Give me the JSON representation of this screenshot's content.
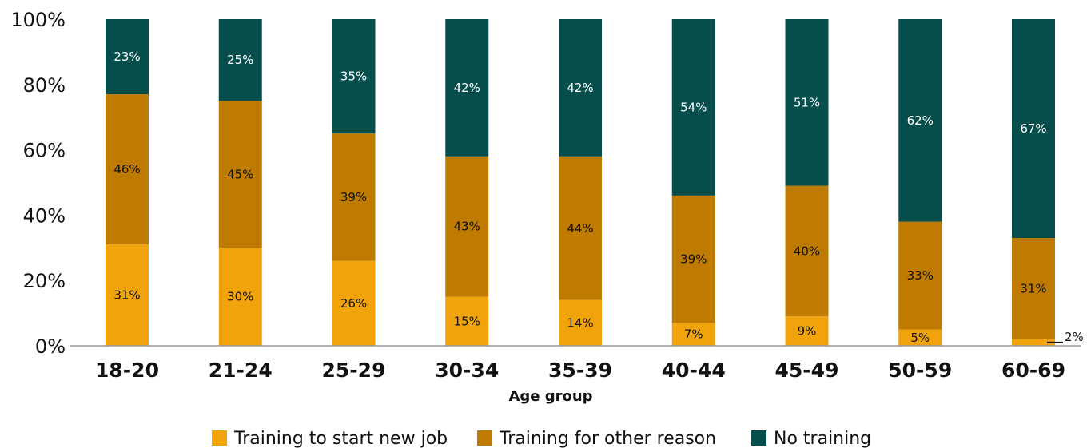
{
  "chart_data": {
    "type": "bar",
    "stacked": true,
    "xlabel": "Age group",
    "ylabel": "",
    "ylim": [
      0,
      100
    ],
    "yticks": [
      "0%",
      "20%",
      "40%",
      "60%",
      "80%",
      "100%"
    ],
    "categories": [
      "18-20",
      "21-24",
      "25-29",
      "30-34",
      "35-39",
      "40-44",
      "45-49",
      "50-59",
      "60-69"
    ],
    "series": [
      {
        "name": "Training to start new job",
        "color": "#f0a30a",
        "values": [
          31,
          30,
          26,
          15,
          14,
          7,
          9,
          5,
          2
        ],
        "labels": [
          "31%",
          "30%",
          "26%",
          "15%",
          "14%",
          "7%",
          "9%",
          "5%",
          "2%"
        ]
      },
      {
        "name": "Training for other reason",
        "color": "#bf7a00",
        "values": [
          46,
          45,
          39,
          43,
          44,
          39,
          40,
          33,
          31
        ],
        "labels": [
          "46%",
          "45%",
          "39%",
          "43%",
          "44%",
          "39%",
          "40%",
          "33%",
          "31%"
        ]
      },
      {
        "name": "No training",
        "color": "#064e4b",
        "values": [
          23,
          25,
          35,
          42,
          42,
          54,
          51,
          62,
          67
        ],
        "labels": [
          "23%",
          "25%",
          "35%",
          "42%",
          "42%",
          "54%",
          "51%",
          "62%",
          "67%"
        ]
      }
    ],
    "legend_position": "bottom",
    "grid": false
  }
}
